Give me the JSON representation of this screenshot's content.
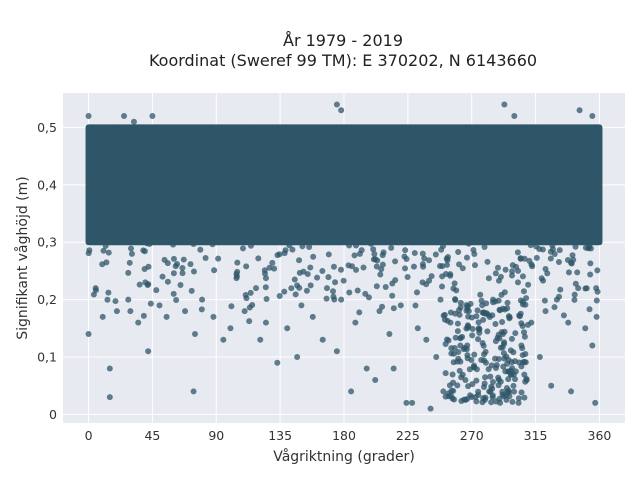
{
  "chart_data": {
    "type": "scatter",
    "title": "År 1979 - 2019",
    "subtitle": "Koordinat (Sweref 99 TM): E 370202, N 6143660",
    "xlabel": "Vågriktning (grader)",
    "ylabel": "Signifikant våghöjd (m)",
    "xlim": [
      -18,
      378
    ],
    "ylim": [
      -0.015,
      0.56
    ],
    "x_ticks": [
      0,
      45,
      90,
      135,
      180,
      225,
      270,
      315,
      360
    ],
    "x_tick_labels": [
      "0",
      "45",
      "90",
      "135",
      "180",
      "225",
      "270",
      "315",
      "360"
    ],
    "y_ticks": [
      0,
      0.1,
      0.2,
      0.3,
      0.4,
      0.5
    ],
    "y_tick_labels": [
      "0",
      "0,1",
      "0,2",
      "0,3",
      "0,4",
      "0,5"
    ],
    "grid": true,
    "marker_color": "#2f5568",
    "background_color": "#e8eaf2",
    "dense_band": {
      "x_range": [
        0,
        360
      ],
      "y_range": [
        0.3,
        0.5
      ]
    },
    "points": [
      [
        0,
        0.14
      ],
      [
        15,
        0.08
      ],
      [
        15,
        0.03
      ],
      [
        42,
        0.11
      ],
      [
        74,
        0.04
      ],
      [
        95,
        0.13
      ],
      [
        121,
        0.13
      ],
      [
        133,
        0.09
      ],
      [
        147,
        0.1
      ],
      [
        165,
        0.13
      ],
      [
        175,
        0.11
      ],
      [
        185,
        0.04
      ],
      [
        196,
        0.08
      ],
      [
        202,
        0.06
      ],
      [
        215,
        0.08
      ],
      [
        224,
        0.02
      ],
      [
        228,
        0.02
      ],
      [
        241,
        0.01
      ],
      [
        250,
        0.04
      ],
      [
        270,
        0.03
      ],
      [
        290,
        0.02
      ],
      [
        326,
        0.05
      ],
      [
        340,
        0.04
      ],
      [
        357,
        0.02
      ],
      [
        0,
        0.52
      ],
      [
        25,
        0.52
      ],
      [
        32,
        0.51
      ],
      [
        45,
        0.52
      ],
      [
        175,
        0.54
      ],
      [
        178,
        0.53
      ],
      [
        293,
        0.54
      ],
      [
        300,
        0.52
      ],
      [
        346,
        0.53
      ],
      [
        355,
        0.52
      ],
      [
        5,
        0.22
      ],
      [
        10,
        0.17
      ],
      [
        20,
        0.18
      ],
      [
        28,
        0.2
      ],
      [
        35,
        0.16
      ],
      [
        40,
        0.23
      ],
      [
        50,
        0.19
      ],
      [
        55,
        0.17
      ],
      [
        60,
        0.21
      ],
      [
        68,
        0.18
      ],
      [
        75,
        0.14
      ],
      [
        80,
        0.2
      ],
      [
        88,
        0.17
      ],
      [
        100,
        0.15
      ],
      [
        110,
        0.18
      ],
      [
        118,
        0.22
      ],
      [
        125,
        0.16
      ],
      [
        140,
        0.15
      ],
      [
        150,
        0.19
      ],
      [
        158,
        0.17
      ],
      [
        168,
        0.22
      ],
      [
        178,
        0.2
      ],
      [
        188,
        0.16
      ],
      [
        195,
        0.21
      ],
      [
        205,
        0.18
      ],
      [
        212,
        0.14
      ],
      [
        220,
        0.19
      ],
      [
        232,
        0.15
      ],
      [
        238,
        0.13
      ],
      [
        245,
        0.1
      ],
      [
        248,
        0.2
      ],
      [
        255,
        0.16
      ],
      [
        262,
        0.12
      ],
      [
        268,
        0.18
      ],
      [
        275,
        0.15
      ],
      [
        280,
        0.09
      ],
      [
        285,
        0.2
      ],
      [
        292,
        0.14
      ],
      [
        298,
        0.07
      ],
      [
        305,
        0.12
      ],
      [
        312,
        0.16
      ],
      [
        318,
        0.1
      ],
      [
        322,
        0.18
      ],
      [
        330,
        0.2
      ],
      [
        338,
        0.16
      ],
      [
        345,
        0.22
      ],
      [
        350,
        0.15
      ],
      [
        355,
        0.12
      ],
      [
        358,
        0.17
      ]
    ]
  }
}
